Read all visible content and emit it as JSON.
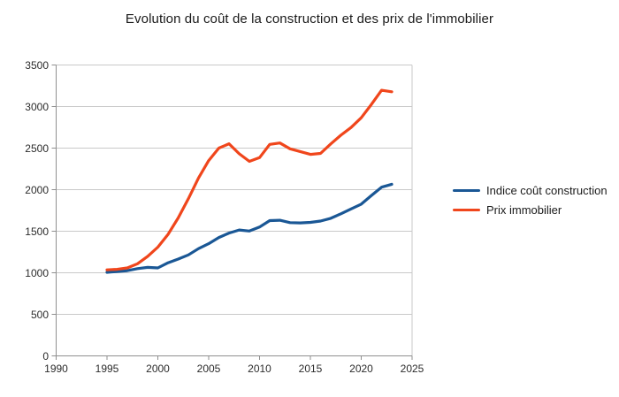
{
  "title": "Evolution du coût de la construction et des prix de l'immobilier",
  "chart_data": {
    "type": "line",
    "title": "Evolution du coût de la construction et des prix de l'immobilier",
    "xlabel": "",
    "ylabel": "",
    "xlim": [
      1990,
      2025
    ],
    "ylim": [
      0,
      3500
    ],
    "x_ticks": [
      "1990",
      "1995",
      "2000",
      "2005",
      "2010",
      "2015",
      "2020",
      "2025"
    ],
    "y_ticks": [
      "0",
      "500",
      "1000",
      "1500",
      "2000",
      "2500",
      "3000",
      "3500"
    ],
    "grid": "horizontal",
    "legend_position": "right-middle",
    "x": [
      1995,
      1996,
      1997,
      1998,
      1999,
      2000,
      2001,
      2002,
      2003,
      2004,
      2005,
      2006,
      2007,
      2008,
      2009,
      2010,
      2011,
      2012,
      2013,
      2014,
      2015,
      2016,
      2017,
      2018,
      2019,
      2020,
      2021,
      2022,
      2023
    ],
    "series": [
      {
        "name": "Indice coût construction",
        "color": "#1a5795",
        "values": [
          1005,
          1015,
          1025,
          1050,
          1065,
          1058,
          1120,
          1165,
          1215,
          1290,
          1350,
          1425,
          1478,
          1515,
          1502,
          1550,
          1628,
          1632,
          1603,
          1600,
          1606,
          1622,
          1655,
          1710,
          1768,
          1825,
          1930,
          2030,
          2065
        ]
      },
      {
        "name": "Prix immobilier",
        "color": "#f0461c",
        "values": [
          1035,
          1042,
          1058,
          1108,
          1198,
          1308,
          1462,
          1660,
          1890,
          2140,
          2350,
          2500,
          2552,
          2432,
          2340,
          2385,
          2545,
          2562,
          2492,
          2458,
          2424,
          2436,
          2550,
          2655,
          2748,
          2865,
          3025,
          3196,
          3178
        ]
      }
    ]
  },
  "styles": {
    "background": "#ffffff",
    "grid_color": "#c9c9c9",
    "axis_color": "#8f8f8f",
    "tick_label_color": "#2b2b2b",
    "title_color": "#1a1a1a"
  }
}
